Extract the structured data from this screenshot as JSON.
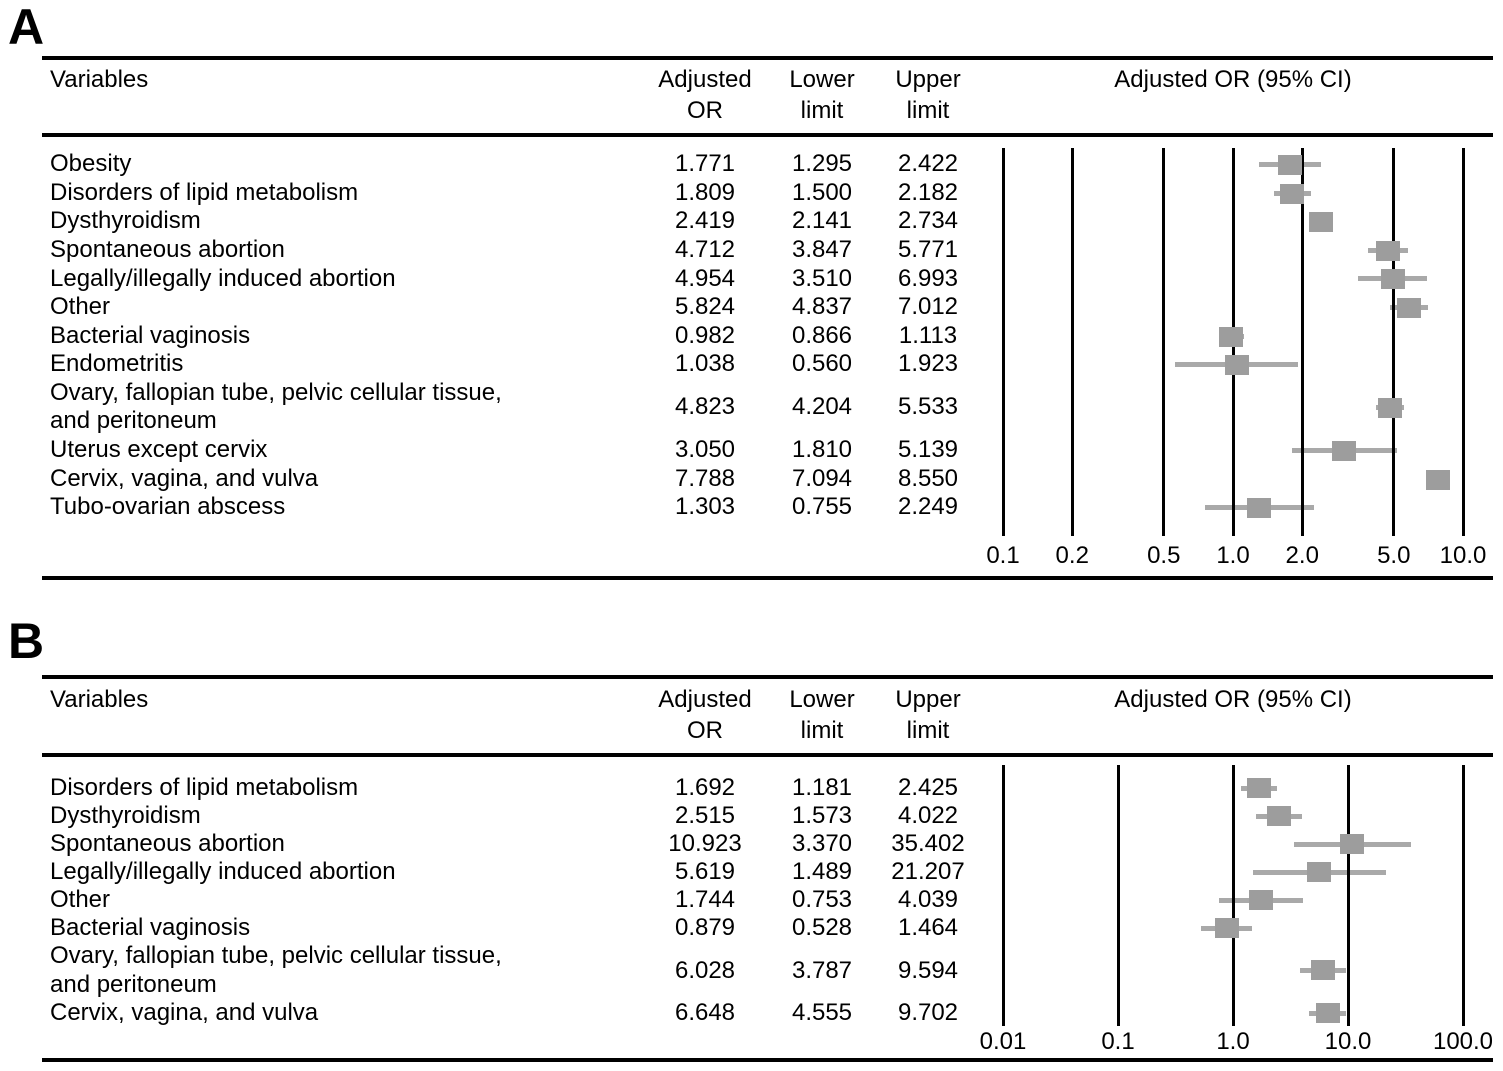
{
  "colors": {
    "marker": "#9d9d9d",
    "whisker": "#a9a9a9",
    "line": "#000000",
    "text": "#000000"
  },
  "chart_data": [
    {
      "type": "scatter",
      "subtype": "forest-plot",
      "panel_label": "A",
      "title": "Adjusted OR (95% CI)",
      "x_scale": "log",
      "xlim": [
        0.1,
        10
      ],
      "grid": "vertical-at-ticks",
      "columns": {
        "variables": "Variables",
        "adjusted_or": "Adjusted\nOR",
        "lower": "Lower\nlimit",
        "upper": "Upper\nlimit",
        "plot": "Adjusted OR (95% CI)"
      },
      "ticks": [
        {
          "value": 0.1,
          "label": "0.1"
        },
        {
          "value": 0.2,
          "label": "0.2"
        },
        {
          "value": 0.5,
          "label": "0.5"
        },
        {
          "value": 1.0,
          "label": "1.0"
        },
        {
          "value": 2.0,
          "label": "2.0"
        },
        {
          "value": 5.0,
          "label": "5.0"
        },
        {
          "value": 10.0,
          "label": "10.0"
        }
      ],
      "rows": [
        {
          "variable": "Obesity",
          "or": 1.771,
          "lower": 1.295,
          "upper": 2.422
        },
        {
          "variable": "Disorders of lipid metabolism",
          "or": 1.809,
          "lower": 1.5,
          "upper": 2.182
        },
        {
          "variable": "Dysthyroidism",
          "or": 2.419,
          "lower": 2.141,
          "upper": 2.734
        },
        {
          "variable": "Spontaneous abortion",
          "or": 4.712,
          "lower": 3.847,
          "upper": 5.771
        },
        {
          "variable": "Legally/illegally induced abortion",
          "or": 4.954,
          "lower": 3.51,
          "upper": 6.993
        },
        {
          "variable": "Other",
          "or": 5.824,
          "lower": 4.837,
          "upper": 7.012
        },
        {
          "variable": "Bacterial vaginosis",
          "or": 0.982,
          "lower": 0.866,
          "upper": 1.113
        },
        {
          "variable": "Endometritis",
          "or": 1.038,
          "lower": 0.56,
          "upper": 1.923
        },
        {
          "variable": "Ovary, fallopian tube, pelvic cellular tissue,\nand peritoneum",
          "or": 4.823,
          "lower": 4.204,
          "upper": 5.533
        },
        {
          "variable": "Uterus except cervix",
          "or": 3.05,
          "lower": 1.81,
          "upper": 5.139
        },
        {
          "variable": "Cervix, vagina, and vulva",
          "or": 7.788,
          "lower": 7.094,
          "upper": 8.55
        },
        {
          "variable": "Tubo-ovarian abscess",
          "or": 1.303,
          "lower": 0.755,
          "upper": 2.249
        }
      ]
    },
    {
      "type": "scatter",
      "subtype": "forest-plot",
      "panel_label": "B",
      "title": "Adjusted OR (95% CI)",
      "x_scale": "log",
      "xlim": [
        0.01,
        100
      ],
      "grid": "vertical-at-ticks",
      "columns": {
        "variables": "Variables",
        "adjusted_or": "Adjusted\nOR",
        "lower": "Lower\nlimit",
        "upper": "Upper\nlimit",
        "plot": "Adjusted OR (95% CI)"
      },
      "ticks": [
        {
          "value": 0.01,
          "label": "0.01"
        },
        {
          "value": 0.1,
          "label": "0.1"
        },
        {
          "value": 1.0,
          "label": "1.0"
        },
        {
          "value": 10.0,
          "label": "10.0"
        },
        {
          "value": 100.0,
          "label": "100.0"
        }
      ],
      "rows": [
        {
          "variable": "Disorders of lipid metabolism",
          "or": 1.692,
          "lower": 1.181,
          "upper": 2.425
        },
        {
          "variable": "Dysthyroidism",
          "or": 2.515,
          "lower": 1.573,
          "upper": 4.022
        },
        {
          "variable": "Spontaneous abortion",
          "or": 10.923,
          "lower": 3.37,
          "upper": 35.402
        },
        {
          "variable": "Legally/illegally induced abortion",
          "or": 5.619,
          "lower": 1.489,
          "upper": 21.207
        },
        {
          "variable": "Other",
          "or": 1.744,
          "lower": 0.753,
          "upper": 4.039
        },
        {
          "variable": "Bacterial vaginosis",
          "or": 0.879,
          "lower": 0.528,
          "upper": 1.464
        },
        {
          "variable": "Ovary, fallopian tube, pelvic cellular tissue,\nand peritoneum",
          "or": 6.028,
          "lower": 3.787,
          "upper": 9.594
        },
        {
          "variable": "Cervix, vagina, and vulva",
          "or": 6.648,
          "lower": 4.555,
          "upper": 9.702
        }
      ]
    }
  ]
}
